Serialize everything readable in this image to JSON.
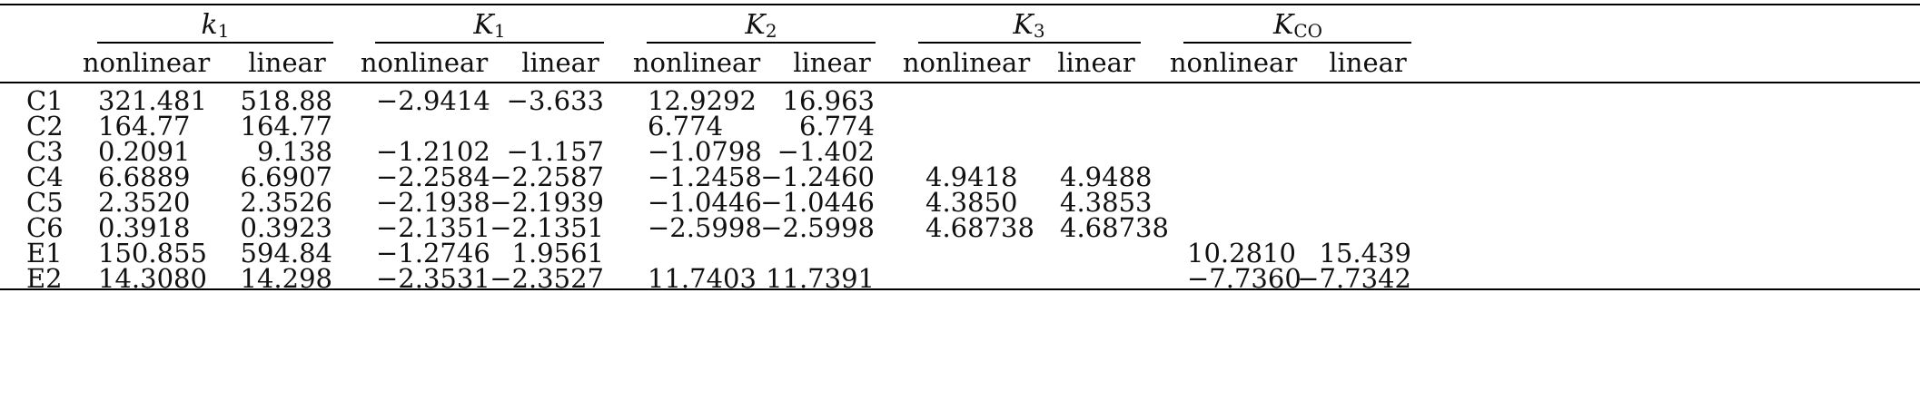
{
  "groups": [
    {
      "sym": "k",
      "sub": "1"
    },
    {
      "sym": "K",
      "sub": "1"
    },
    {
      "sym": "K",
      "sub": "2"
    },
    {
      "sym": "K",
      "sub": "3"
    },
    {
      "sym": "K",
      "sub": "CO"
    }
  ],
  "subheaders": [
    "nonlinear",
    "linear"
  ],
  "rows": [
    {
      "label": "C1",
      "values": [
        "321.481",
        "518.88",
        "−2.9414",
        "−3.633",
        "12.9292",
        "16.963",
        "",
        "",
        "",
        ""
      ]
    },
    {
      "label": "C2",
      "values": [
        "164.77",
        "164.77",
        "",
        "",
        "6.774",
        "6.774",
        "",
        "",
        "",
        ""
      ]
    },
    {
      "label": "C3",
      "values": [
        "0.2091",
        "9.138",
        "−1.2102",
        "−1.157",
        "−1.0798",
        "−1.402",
        "",
        "",
        "",
        ""
      ]
    },
    {
      "label": "C4",
      "values": [
        "6.6889",
        "6.6907",
        "−2.2584",
        "−2.2587",
        "−1.2458",
        "−1.2460",
        "4.9418",
        "4.9488",
        "",
        ""
      ]
    },
    {
      "label": "C5",
      "values": [
        "2.3520",
        "2.3526",
        "−2.1938",
        "−2.1939",
        "−1.0446",
        "−1.0446",
        "4.3850",
        "4.3853",
        "",
        ""
      ]
    },
    {
      "label": "C6",
      "values": [
        "0.3918",
        "0.3923",
        "−2.1351",
        "−2.1351",
        "−2.5998",
        "−2.5998",
        "4.68738",
        "4.68738",
        "",
        ""
      ]
    },
    {
      "label": "E1",
      "values": [
        "150.855",
        "594.84",
        "−1.2746",
        "1.9561",
        "",
        "",
        "",
        "",
        "10.2810",
        "15.439"
      ]
    },
    {
      "label": "E2",
      "values": [
        "14.3080",
        "14.298",
        "−2.3531",
        "−2.3527",
        "11.7403",
        "11.7391",
        "",
        "",
        "−7.7360",
        "−7.7342"
      ]
    }
  ]
}
